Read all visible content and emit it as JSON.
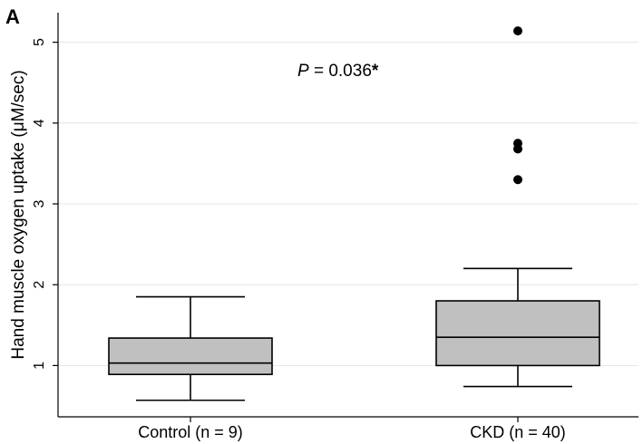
{
  "panel_label": "A",
  "chart_data": {
    "type": "box",
    "ylabel": "Hand muscle oxygen uptake (μM/sec)",
    "ylim": [
      0.0,
      5.35
    ],
    "yticks": [
      "1",
      "2",
      "3",
      "4",
      "5"
    ],
    "grid": "horizontal",
    "box_color": "#c0c0c0",
    "outlier_color": "#000000",
    "categories": [
      "Control (n = 9)",
      "CKD (n = 40)"
    ],
    "boxes": [
      {
        "label": "Control (n = 9)",
        "whisker_low": 0.57,
        "q1": 0.89,
        "median": 1.03,
        "q3": 1.34,
        "whisker_high": 1.85,
        "outliers": []
      },
      {
        "label": "CKD (n = 40)",
        "whisker_low": 0.74,
        "q1": 1.0,
        "median": 1.35,
        "q3": 1.8,
        "whisker_high": 2.2,
        "outliers": [
          3.3,
          3.68,
          3.75,
          5.14
        ]
      }
    ],
    "annotation": {
      "italic": "P",
      "text": " = 0.036",
      "mark": "*"
    }
  }
}
